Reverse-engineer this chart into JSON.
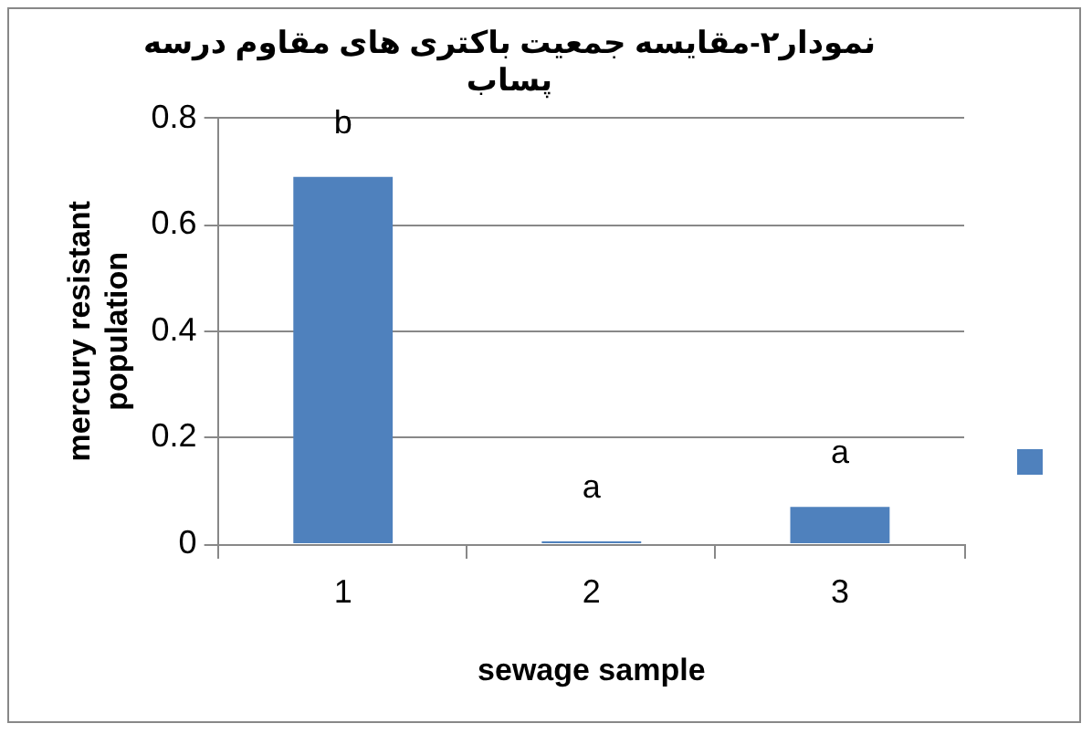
{
  "chart_data": {
    "type": "bar",
    "title": "نمودار۲-مقایسه جمعیت باکتری های مقاوم درسه پساب",
    "xlabel": "sewage sample",
    "ylabel": "mercury resistant population",
    "categories": [
      "1",
      "2",
      "3"
    ],
    "series": [
      {
        "color": "#4f81bd",
        "values": [
          0.69,
          0.005,
          0.07
        ]
      }
    ],
    "ylim": [
      0,
      0.8
    ],
    "yticks": [
      0,
      0.2,
      0.4,
      0.6,
      0.8
    ],
    "grid": "y",
    "annotations": [
      "b",
      "a",
      "a"
    ]
  }
}
